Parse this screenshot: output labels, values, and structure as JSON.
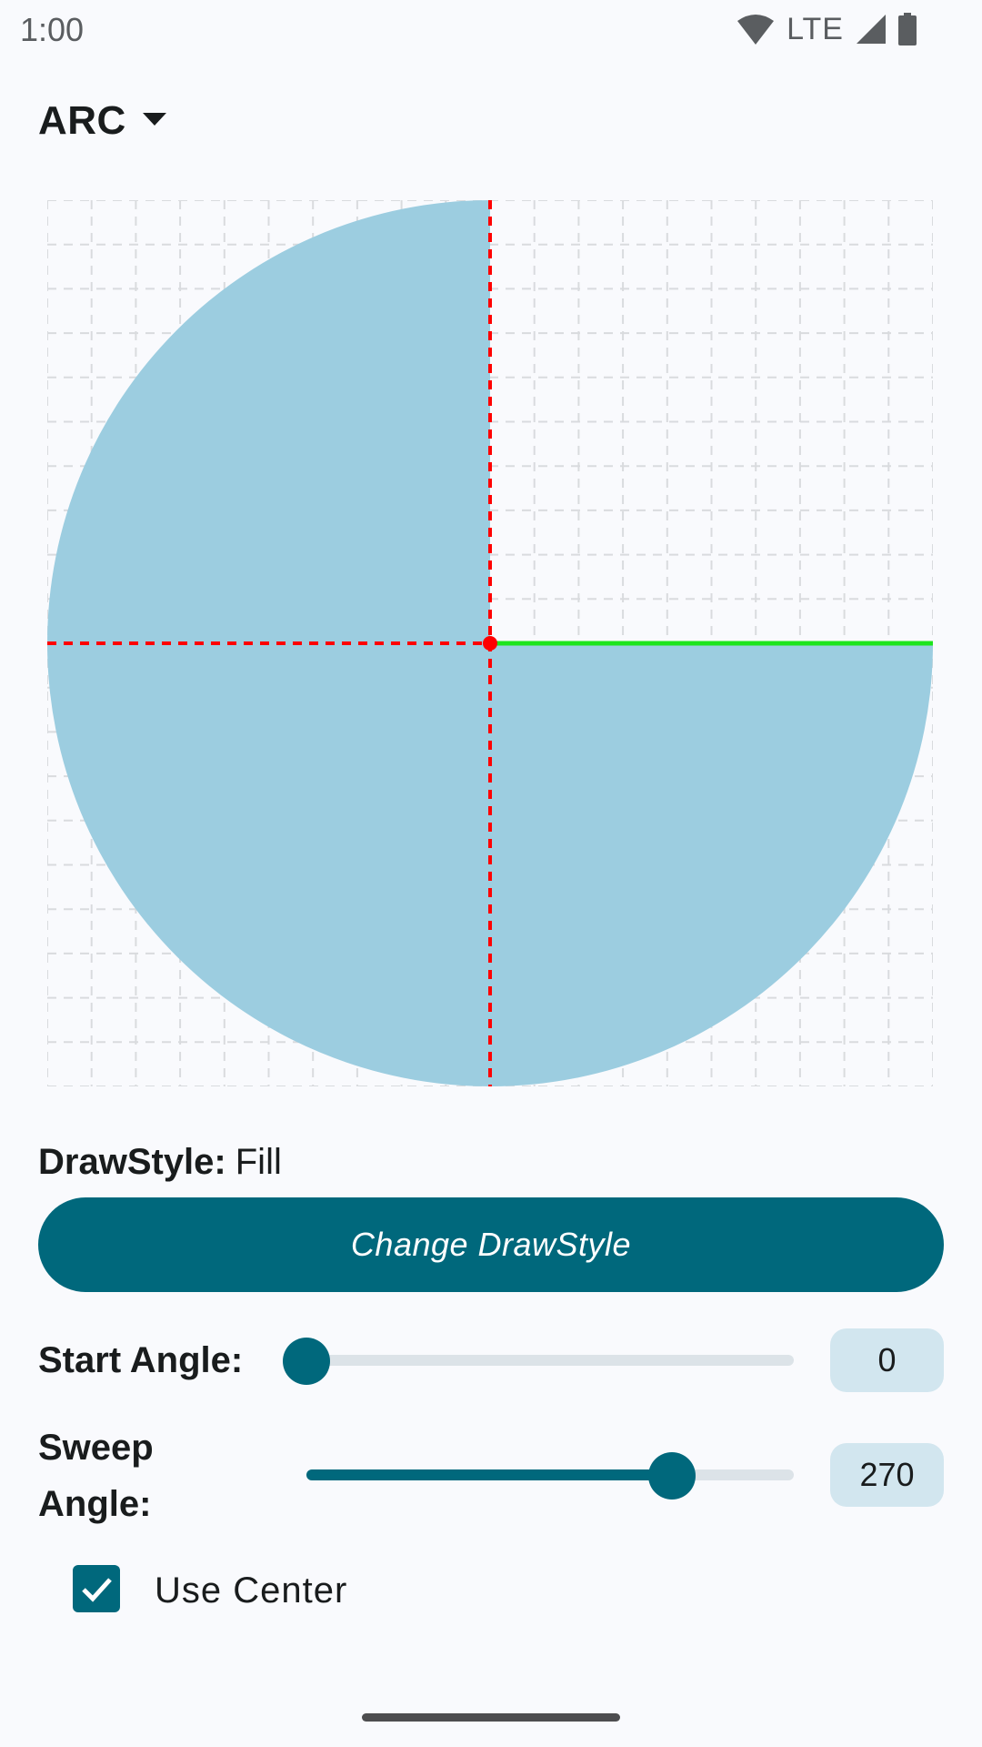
{
  "status_bar": {
    "time": "1:00",
    "network": "LTE",
    "icons": [
      "wifi-icon",
      "cellular-signal-icon",
      "battery-icon"
    ]
  },
  "shape_selector": {
    "selected": "ARC",
    "icon": "dropdown-arrow-icon"
  },
  "canvas": {
    "shape": "arc",
    "start_angle": 0,
    "sweep_angle": 270,
    "use_center": true,
    "fill_color": "#9ccde0",
    "guide_color": "#ff0000",
    "start_line_color": "#1de51d",
    "grid_color": "#d9dbde"
  },
  "draw_style": {
    "label": "DrawStyle:",
    "value": "Fill",
    "button_label": "Change DrawStyle"
  },
  "start_angle": {
    "label": "Start Angle:",
    "value": "0",
    "fraction": 0.0
  },
  "sweep_angle": {
    "label_line1": "Sweep",
    "label_line2": "Angle:",
    "value": "270",
    "fraction": 0.75
  },
  "use_center": {
    "label": "Use Center",
    "checked": true
  },
  "colors": {
    "primary": "#00687c",
    "value_box": "#d2e6ef",
    "background": "#f9fafd"
  }
}
